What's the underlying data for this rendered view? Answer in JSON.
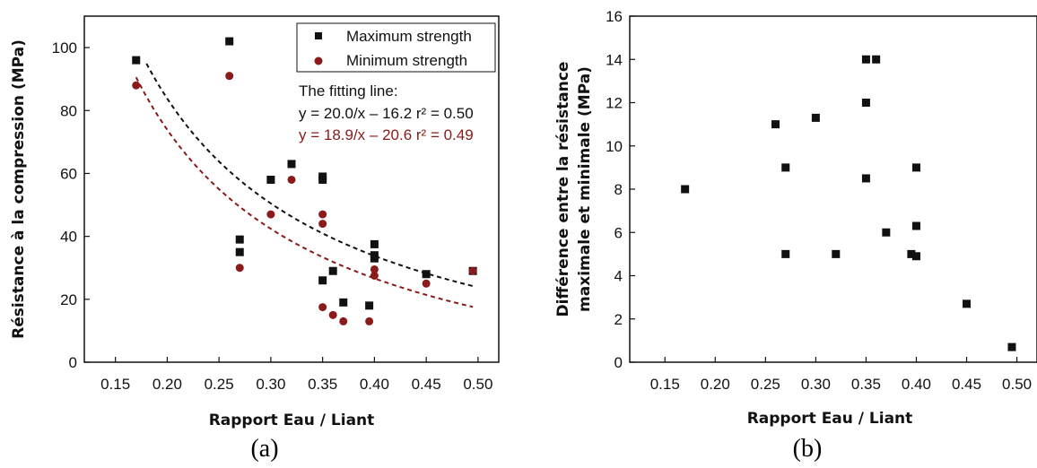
{
  "chart_data": [
    {
      "type": "scatter",
      "caption": "(a)",
      "xlabel": "Rapport Eau / Liant",
      "ylabel": "Résistance à la compression (MPa)",
      "xlim": [
        0.12,
        0.52
      ],
      "ylim": [
        0,
        110
      ],
      "xticks": [
        "0.15",
        "0.20",
        "0.25",
        "0.30",
        "0.35",
        "0.40",
        "0.45",
        "0.50"
      ],
      "yticks": [
        "0",
        "20",
        "40",
        "60",
        "80",
        "100"
      ],
      "legend": {
        "position": "top-right",
        "entries": [
          "Maximum strength",
          "Minimum strength"
        ]
      },
      "series": [
        {
          "name": "Maximum strength",
          "marker": "square",
          "color": "#111111",
          "x": [
            0.17,
            0.26,
            0.27,
            0.27,
            0.3,
            0.32,
            0.35,
            0.35,
            0.35,
            0.36,
            0.37,
            0.395,
            0.4,
            0.4,
            0.4,
            0.45,
            0.495
          ],
          "y": [
            96,
            102,
            39,
            35,
            58,
            63,
            59,
            58,
            26,
            29,
            19,
            18,
            37.5,
            34,
            33,
            28,
            29
          ]
        },
        {
          "name": "Minimum strength",
          "marker": "circle",
          "color": "#8b1a1a",
          "x": [
            0.17,
            0.26,
            0.27,
            0.3,
            0.32,
            0.35,
            0.35,
            0.35,
            0.36,
            0.37,
            0.395,
            0.4,
            0.4,
            0.45,
            0.495
          ],
          "y": [
            88,
            91,
            30,
            47,
            58,
            47,
            44,
            17.5,
            15,
            13,
            13,
            29.5,
            27.5,
            25,
            29
          ]
        }
      ],
      "fit_lines": [
        {
          "color": "#111111",
          "a": 20.0,
          "b": -16.2,
          "x_from": 0.18,
          "x_to": 0.495
        },
        {
          "color": "#8b1a1a",
          "a": 18.9,
          "b": -20.6,
          "x_from": 0.17,
          "x_to": 0.495
        }
      ],
      "annotation": {
        "heading": "The fitting line:",
        "line1": "y = 20.0/x – 16.2  r² = 0.50",
        "line2": "y = 18.9/x – 20.6  r² = 0.49",
        "line1_color": "#111111",
        "line2_color": "#8b1a1a"
      }
    },
    {
      "type": "scatter",
      "caption": "(b)",
      "xlabel": "Rapport Eau / Liant",
      "ylabel_line1": "Différence entre la résistance",
      "ylabel_line2": "maximale et minimale (MPa)",
      "xlim": [
        0.115,
        0.52
      ],
      "ylim": [
        0,
        16
      ],
      "xticks": [
        "0.15",
        "0.20",
        "0.25",
        "0.30",
        "0.35",
        "0.40",
        "0.45",
        "0.50"
      ],
      "yticks": [
        "0",
        "2",
        "4",
        "6",
        "8",
        "10",
        "12",
        "14",
        "16"
      ],
      "series": [
        {
          "marker": "square",
          "color": "#111111",
          "x": [
            0.17,
            0.26,
            0.27,
            0.27,
            0.3,
            0.32,
            0.35,
            0.35,
            0.35,
            0.36,
            0.37,
            0.395,
            0.4,
            0.4,
            0.4,
            0.45,
            0.495
          ],
          "y": [
            8,
            11,
            9,
            5,
            11.3,
            5,
            14,
            12,
            8.5,
            14,
            6,
            5,
            9,
            6.3,
            4.9,
            2.7,
            0.7
          ]
        }
      ]
    }
  ]
}
